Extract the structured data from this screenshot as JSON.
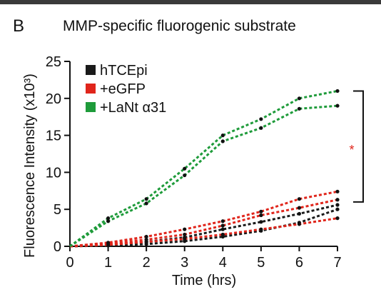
{
  "panel_label": "B",
  "chart_data": {
    "type": "line",
    "title": "MMP-specific fluorogenic substrate",
    "xlabel": "Time (hrs)",
    "ylabel": "Fluorescence Intensity (x10³)",
    "xlim": [
      0,
      7
    ],
    "ylim": [
      0,
      25
    ],
    "xticks": [
      "0",
      "1",
      "2",
      "3",
      "4",
      "5",
      "6",
      "7"
    ],
    "yticks": [
      "0",
      "5",
      "10",
      "15",
      "20",
      "25"
    ],
    "legend_position": "top-left",
    "legend": [
      {
        "label": "hTCEpi",
        "color": "#1a1a1a"
      },
      {
        "label": "+eGFP",
        "color": "#e0251b"
      },
      {
        "label": "+LaNt α31",
        "color": "#1e9b3a"
      }
    ],
    "x": [
      0,
      1,
      2,
      3,
      4,
      5,
      6,
      7
    ],
    "series": [
      {
        "group": "hTCEpi",
        "color": "#1a1a1a",
        "values": [
          0,
          0.2,
          0.6,
          1.2,
          2.3,
          3.3,
          4.4,
          5.6
        ]
      },
      {
        "group": "hTCEpi",
        "color": "#1a1a1a",
        "values": [
          0,
          0.1,
          0.3,
          0.7,
          1.3,
          2.1,
          3.2,
          5.0
        ]
      },
      {
        "group": "+eGFP",
        "color": "#e0251b",
        "values": [
          0,
          0.5,
          1.3,
          2.3,
          3.4,
          4.7,
          6.4,
          7.4
        ]
      },
      {
        "group": "+eGFP",
        "color": "#e0251b",
        "values": [
          0,
          0.2,
          0.6,
          1.0,
          1.6,
          2.3,
          3.0,
          3.8
        ]
      },
      {
        "group": "+eGFP",
        "color": "#e0251b",
        "values": [
          0,
          0.4,
          0.9,
          1.6,
          2.8,
          4.2,
          5.2,
          6.3
        ]
      },
      {
        "group": "+LaNt α31",
        "color": "#1e9b3a",
        "values": [
          0,
          3.8,
          6.4,
          10.5,
          15.0,
          17.2,
          20.0,
          21.0
        ]
      },
      {
        "group": "+LaNt α31",
        "color": "#1e9b3a",
        "values": [
          0,
          3.4,
          5.8,
          9.6,
          14.2,
          16.0,
          18.6,
          19.0
        ]
      }
    ],
    "annotation": {
      "text": "*",
      "color": "#e0251b",
      "bracket_from": 6,
      "bracket_to": 21
    }
  }
}
